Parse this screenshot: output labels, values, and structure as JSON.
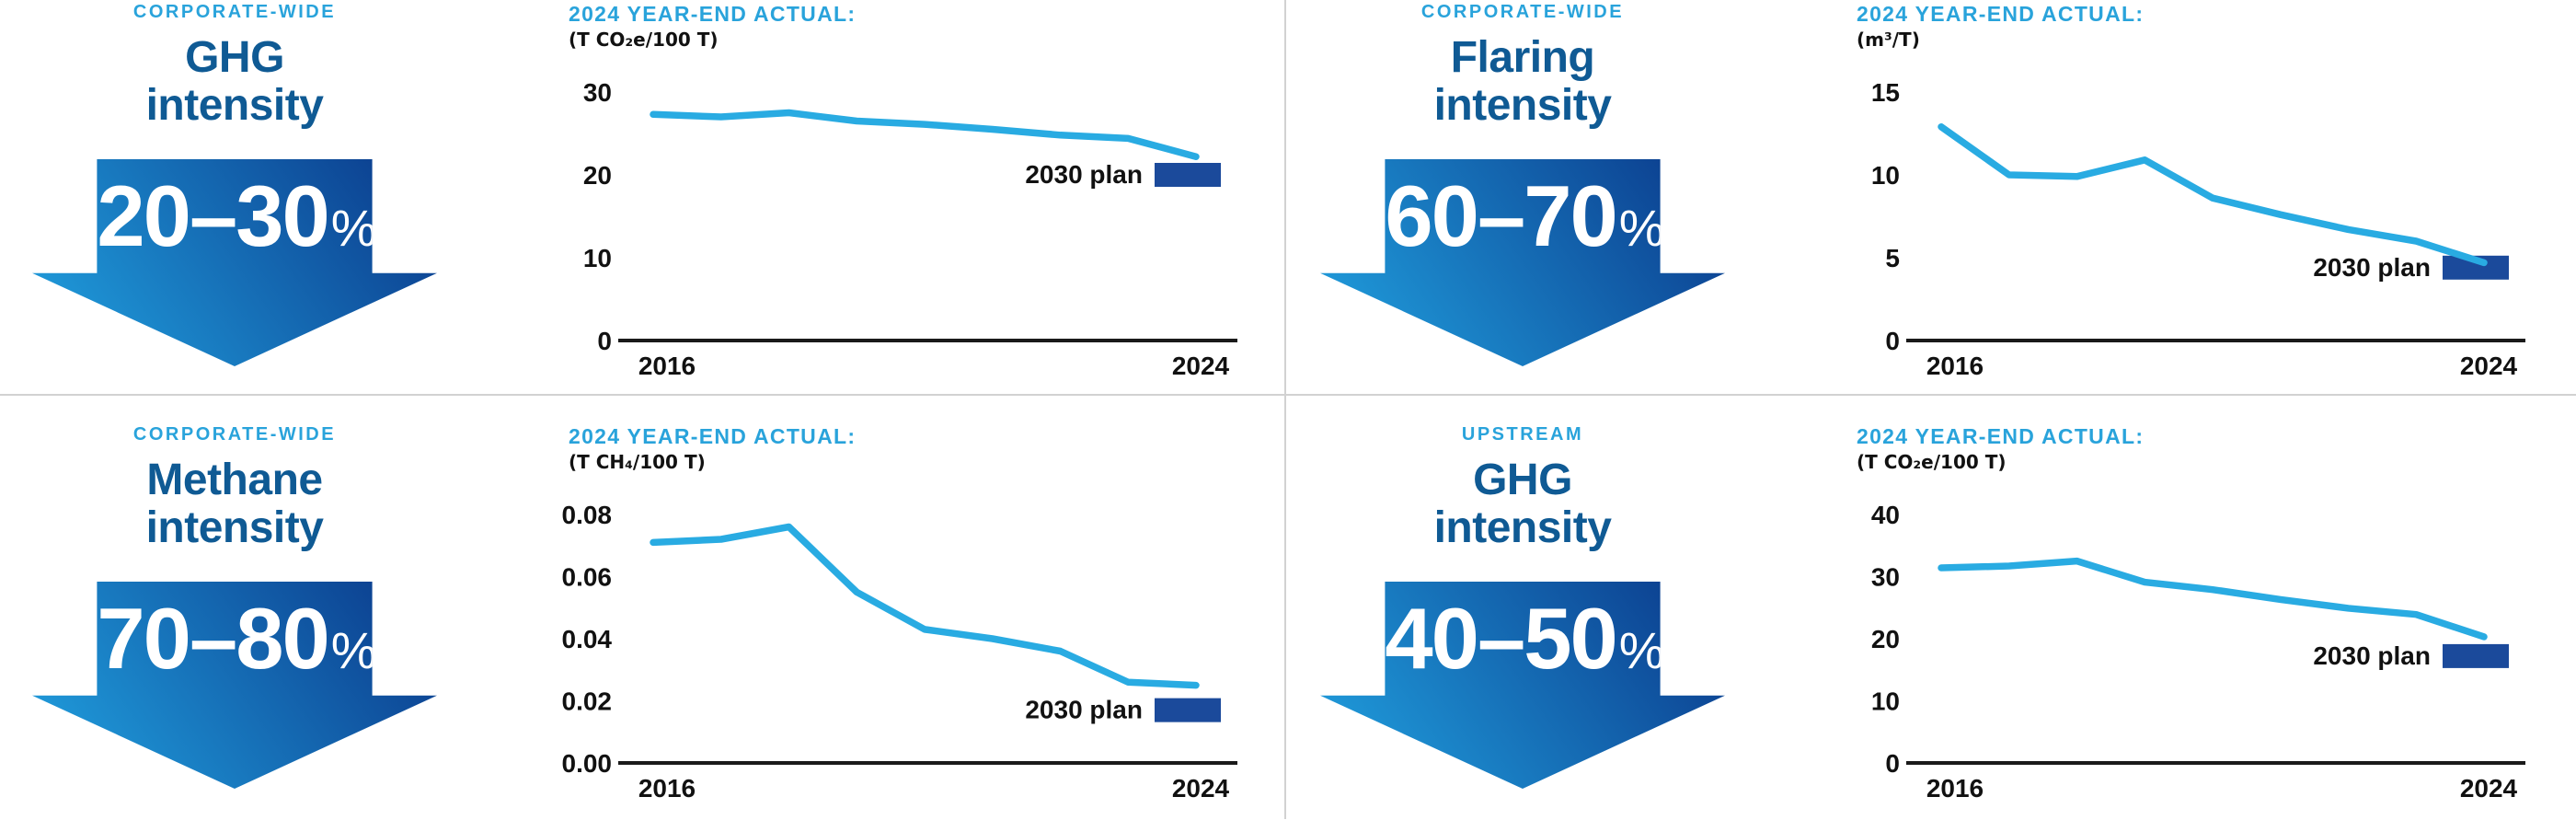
{
  "colors": {
    "accent_cyan": "#29a3db",
    "line_cyan": "#29abe2",
    "title_blue": "#0f5a94",
    "bar_navy": "#1b4a9b",
    "arrow_gradient_start": "#21a3e1",
    "arrow_gradient_end": "#0b3c8d",
    "axis_black": "#1a1a1a",
    "divider_gray": "#d2d2d2"
  },
  "quadrants": [
    {
      "scope": "CORPORATE-WIDE",
      "metric_line1": "GHG",
      "metric_line2": "intensity",
      "range": "20–30",
      "percent": "%"
    },
    {
      "scope": "CORPORATE-WIDE",
      "metric_line1": "Flaring",
      "metric_line2": "intensity",
      "range": "60–70",
      "percent": "%"
    },
    {
      "scope": "CORPORATE-WIDE",
      "metric_line1": "Methane",
      "metric_line2": "intensity",
      "range": "70–80",
      "percent": "%"
    },
    {
      "scope": "UPSTREAM",
      "metric_line1": "GHG",
      "metric_line2": "intensity",
      "range": "40–50",
      "percent": "%"
    }
  ],
  "chart_data": [
    {
      "type": "line",
      "title": "2024 YEAR-END ACTUAL:",
      "unit": "(T CO₂e/100 T)",
      "x": [
        2016,
        2017,
        2018,
        2019,
        2020,
        2021,
        2022,
        2023,
        2024
      ],
      "values": [
        27.3,
        27.0,
        27.5,
        26.5,
        26.1,
        25.5,
        24.8,
        24.4,
        22.2
      ],
      "yticks": [
        "30",
        "20",
        "10",
        "0"
      ],
      "ymax": 30,
      "ylim": [
        0,
        30
      ],
      "xticks": [
        "2016",
        "2024"
      ],
      "plan": {
        "label": "2030 plan",
        "value": 20
      },
      "grid": false,
      "legend": "none"
    },
    {
      "type": "line",
      "title": "2024 YEAR-END ACTUAL:",
      "unit": "(m³/T)",
      "x": [
        2016,
        2017,
        2018,
        2019,
        2020,
        2021,
        2022,
        2023,
        2024
      ],
      "values": [
        12.9,
        10.0,
        9.9,
        10.9,
        8.6,
        7.6,
        6.7,
        6.0,
        4.7
      ],
      "yticks": [
        "15",
        "10",
        "5",
        "0"
      ],
      "ymax": 15,
      "ylim": [
        0,
        15
      ],
      "xticks": [
        "2016",
        "2024"
      ],
      "plan": {
        "label": "2030 plan",
        "value": 4.4
      },
      "grid": false,
      "legend": "none"
    },
    {
      "type": "line",
      "title": "2024 YEAR-END ACTUAL:",
      "unit": "(T CH₄/100 T)",
      "x": [
        2016,
        2017,
        2018,
        2019,
        2020,
        2021,
        2022,
        2023,
        2024
      ],
      "values": [
        0.071,
        0.072,
        0.076,
        0.055,
        0.043,
        0.04,
        0.036,
        0.026,
        0.025
      ],
      "yticks": [
        "0.08",
        "0.06",
        "0.04",
        "0.02",
        "0.00"
      ],
      "ymax": 0.08,
      "ylim": [
        0,
        0.08
      ],
      "xticks": [
        "2016",
        "2024"
      ],
      "plan": {
        "label": "2030 plan",
        "value": 0.017
      },
      "grid": false,
      "legend": "none"
    },
    {
      "type": "line",
      "title": "2024 YEAR-END ACTUAL:",
      "unit": "(T CO₂e/100 T)",
      "x": [
        2016,
        2017,
        2018,
        2019,
        2020,
        2021,
        2022,
        2023,
        2024
      ],
      "values": [
        31.4,
        31.7,
        32.5,
        29.1,
        27.9,
        26.3,
        24.9,
        23.9,
        20.3
      ],
      "yticks": [
        "40",
        "30",
        "20",
        "10",
        "0"
      ],
      "ymax": 40,
      "ylim": [
        0,
        40
      ],
      "xticks": [
        "2016",
        "2024"
      ],
      "plan": {
        "label": "2030 plan",
        "value": 17.2
      },
      "grid": false,
      "legend": "none"
    }
  ]
}
